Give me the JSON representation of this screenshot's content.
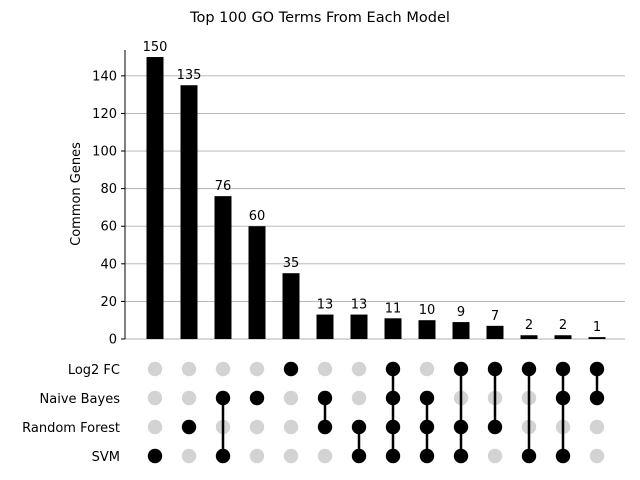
{
  "chart_data": {
    "type": "bar",
    "title": "Top 100 GO Terms From Each Model",
    "ylabel": "Common Genes",
    "xlabel": "",
    "ylim": [
      0,
      158
    ],
    "yticks": [
      0,
      20,
      40,
      60,
      80,
      100,
      120,
      140
    ],
    "ytick_labels": [
      "0",
      "20",
      "40",
      "60",
      "80",
      "100",
      "120",
      "140"
    ],
    "grid": "horizontal",
    "sets": [
      "Log2 FC",
      "Naive Bayes",
      "Random Forest",
      "SVM"
    ],
    "values": [
      150,
      135,
      76,
      60,
      35,
      13,
      13,
      11,
      10,
      9,
      7,
      2,
      2,
      1
    ],
    "value_labels": [
      "150",
      "135",
      "76",
      "60",
      "35",
      "13",
      "13",
      "11",
      "10",
      "9",
      "7",
      "2",
      "2",
      "1"
    ],
    "memberships": [
      [
        "SVM"
      ],
      [
        "Random Forest"
      ],
      [
        "Naive Bayes",
        "SVM"
      ],
      [
        "Naive Bayes"
      ],
      [
        "Log2 FC"
      ],
      [
        "Naive Bayes",
        "Random Forest"
      ],
      [
        "Random Forest",
        "SVM"
      ],
      [
        "Log2 FC",
        "Naive Bayes",
        "Random Forest",
        "SVM"
      ],
      [
        "Naive Bayes",
        "Random Forest",
        "SVM"
      ],
      [
        "Log2 FC",
        "Random Forest",
        "SVM"
      ],
      [
        "Log2 FC",
        "Random Forest"
      ],
      [
        "Log2 FC",
        "SVM"
      ],
      [
        "Log2 FC",
        "Naive Bayes",
        "SVM"
      ],
      [
        "Log2 FC",
        "Naive Bayes"
      ]
    ],
    "colors": {
      "bar": "#000000",
      "active_dot": "#000000",
      "inactive_dot": "#d3d3d3",
      "grid": "#b0b0b0"
    }
  }
}
